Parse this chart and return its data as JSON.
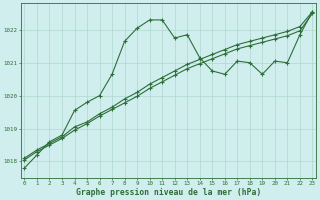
{
  "title": "Graphe pression niveau de la mer (hPa)",
  "background_color": "#d0eeed",
  "grid_color": "#b0d8d0",
  "line_color": "#2d6e3a",
  "x_ticks": [
    0,
    1,
    2,
    3,
    4,
    5,
    6,
    7,
    8,
    9,
    10,
    11,
    12,
    13,
    14,
    15,
    16,
    17,
    18,
    19,
    20,
    21,
    22,
    23
  ],
  "ylim": [
    1017.5,
    1022.8
  ],
  "yticks": [
    1018,
    1019,
    1020,
    1021,
    1022
  ],
  "series1": [
    1017.8,
    1018.2,
    1018.6,
    1018.8,
    1019.55,
    1019.8,
    1020.0,
    1020.65,
    1021.65,
    1022.05,
    1022.3,
    1022.3,
    1021.75,
    1021.85,
    1021.15,
    1020.75,
    1020.65,
    1021.05,
    1021.0,
    1020.65,
    1021.05,
    1021.0,
    1021.85,
    1022.55
  ],
  "series2": [
    1018.1,
    1018.35,
    1018.55,
    1018.75,
    1019.05,
    1019.2,
    1019.45,
    1019.65,
    1019.9,
    1020.1,
    1020.35,
    1020.55,
    1020.75,
    1020.95,
    1021.1,
    1021.25,
    1021.4,
    1021.55,
    1021.65,
    1021.75,
    1021.85,
    1021.95,
    1022.1,
    1022.55
  ],
  "series3": [
    1018.05,
    1018.3,
    1018.5,
    1018.7,
    1018.95,
    1019.15,
    1019.38,
    1019.58,
    1019.78,
    1019.98,
    1020.22,
    1020.42,
    1020.62,
    1020.82,
    1020.97,
    1021.12,
    1021.27,
    1021.42,
    1021.52,
    1021.62,
    1021.72,
    1021.82,
    1021.97,
    1022.5
  ]
}
